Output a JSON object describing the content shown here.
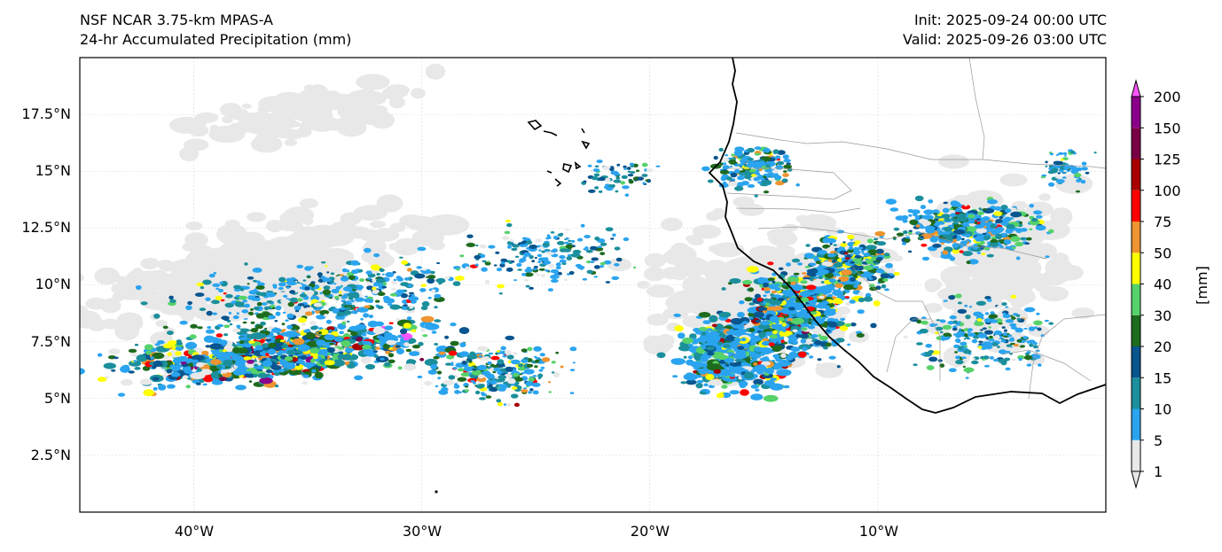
{
  "header": {
    "model": "NSF NCAR 3.75-km MPAS-A",
    "field": "24-hr Accumulated Precipitation (mm)",
    "init": "Init: 2025-09-24 00:00 UTC",
    "valid": "Valid: 2025-09-26 03:00 UTC"
  },
  "map": {
    "lon_range": [
      -45,
      0
    ],
    "lat_range": [
      0,
      20
    ],
    "x_ticks": [
      "40°W",
      "30°W",
      "20°W",
      "10°W"
    ],
    "y_ticks": [
      "2.5°N",
      "5°N",
      "7.5°N",
      "10°N",
      "12.5°N",
      "15°N",
      "17.5°N"
    ],
    "gridlines": true
  },
  "colorbar": {
    "unit": "[mm]",
    "levels": [
      "1",
      "5",
      "10",
      "15",
      "20",
      "30",
      "40",
      "50",
      "75",
      "100",
      "125",
      "150",
      "200"
    ],
    "colors": [
      "#e8e8e8",
      "#2aa4ef",
      "#1b8f9c",
      "#08558f",
      "#1e6b1e",
      "#56d26a",
      "#ffff00",
      "#ee9430",
      "#ff0000",
      "#a80000",
      "#7a0045",
      "#8a008a",
      "#ff55ff"
    ]
  }
}
